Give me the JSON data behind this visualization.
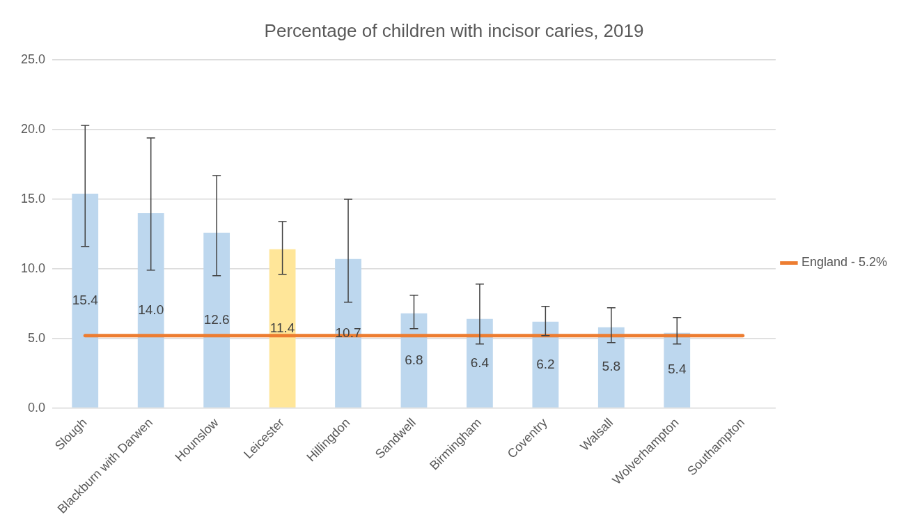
{
  "chart_data": {
    "type": "bar",
    "title": "Percentage of children with incisor caries, 2019",
    "categories": [
      "Slough",
      "Blackburn with Darwen",
      "Hounslow",
      "Leicester",
      "Hillingdon",
      "Sandwell",
      "Birmingham",
      "Coventry",
      "Walsall",
      "Wolverhampton",
      "Southampton"
    ],
    "series": [
      {
        "colors": [
          "#bdd7ee",
          "#bdd7ee",
          "#bdd7ee",
          "#ffe699",
          "#bdd7ee",
          "#bdd7ee",
          "#bdd7ee",
          "#bdd7ee",
          "#bdd7ee",
          "#bdd7ee",
          "#bdd7ee"
        ],
        "values": [
          15.4,
          14.0,
          12.6,
          11.4,
          10.7,
          6.8,
          6.4,
          6.2,
          5.8,
          5.4,
          null
        ],
        "value_labels": [
          "15.4",
          "14.0",
          "12.6",
          "11.4",
          "10.7",
          "6.8",
          "6.4",
          "6.2",
          "5.8",
          "5.4",
          null
        ],
        "errors": [
          [
            11.6,
            20.3
          ],
          [
            9.9,
            19.4
          ],
          [
            9.5,
            16.7
          ],
          [
            9.6,
            13.4
          ],
          [
            7.6,
            15.0
          ],
          [
            5.7,
            8.1
          ],
          [
            4.6,
            8.9
          ],
          [
            5.2,
            7.3
          ],
          [
            4.7,
            7.2
          ],
          [
            4.6,
            6.5
          ],
          null
        ]
      },
      {
        "type": "line",
        "name": "England - 5.2%",
        "color": "#ed7d31",
        "values": [
          5.2,
          5.2,
          5.2,
          5.2,
          5.2,
          5.2,
          5.2,
          5.2,
          5.2,
          5.2,
          5.2
        ]
      }
    ],
    "ylim": [
      0,
      25
    ],
    "yticks": [
      {
        "value": 0,
        "label": "0.0"
      },
      {
        "value": 5,
        "label": "5.0"
      },
      {
        "value": 10,
        "label": "10.0"
      },
      {
        "value": 15,
        "label": "15.0"
      },
      {
        "value": 20,
        "label": "20.0"
      },
      {
        "value": 25,
        "label": "25.0"
      }
    ],
    "grid": "y",
    "legend": "right",
    "marker": "none",
    "line_style": "solid"
  }
}
